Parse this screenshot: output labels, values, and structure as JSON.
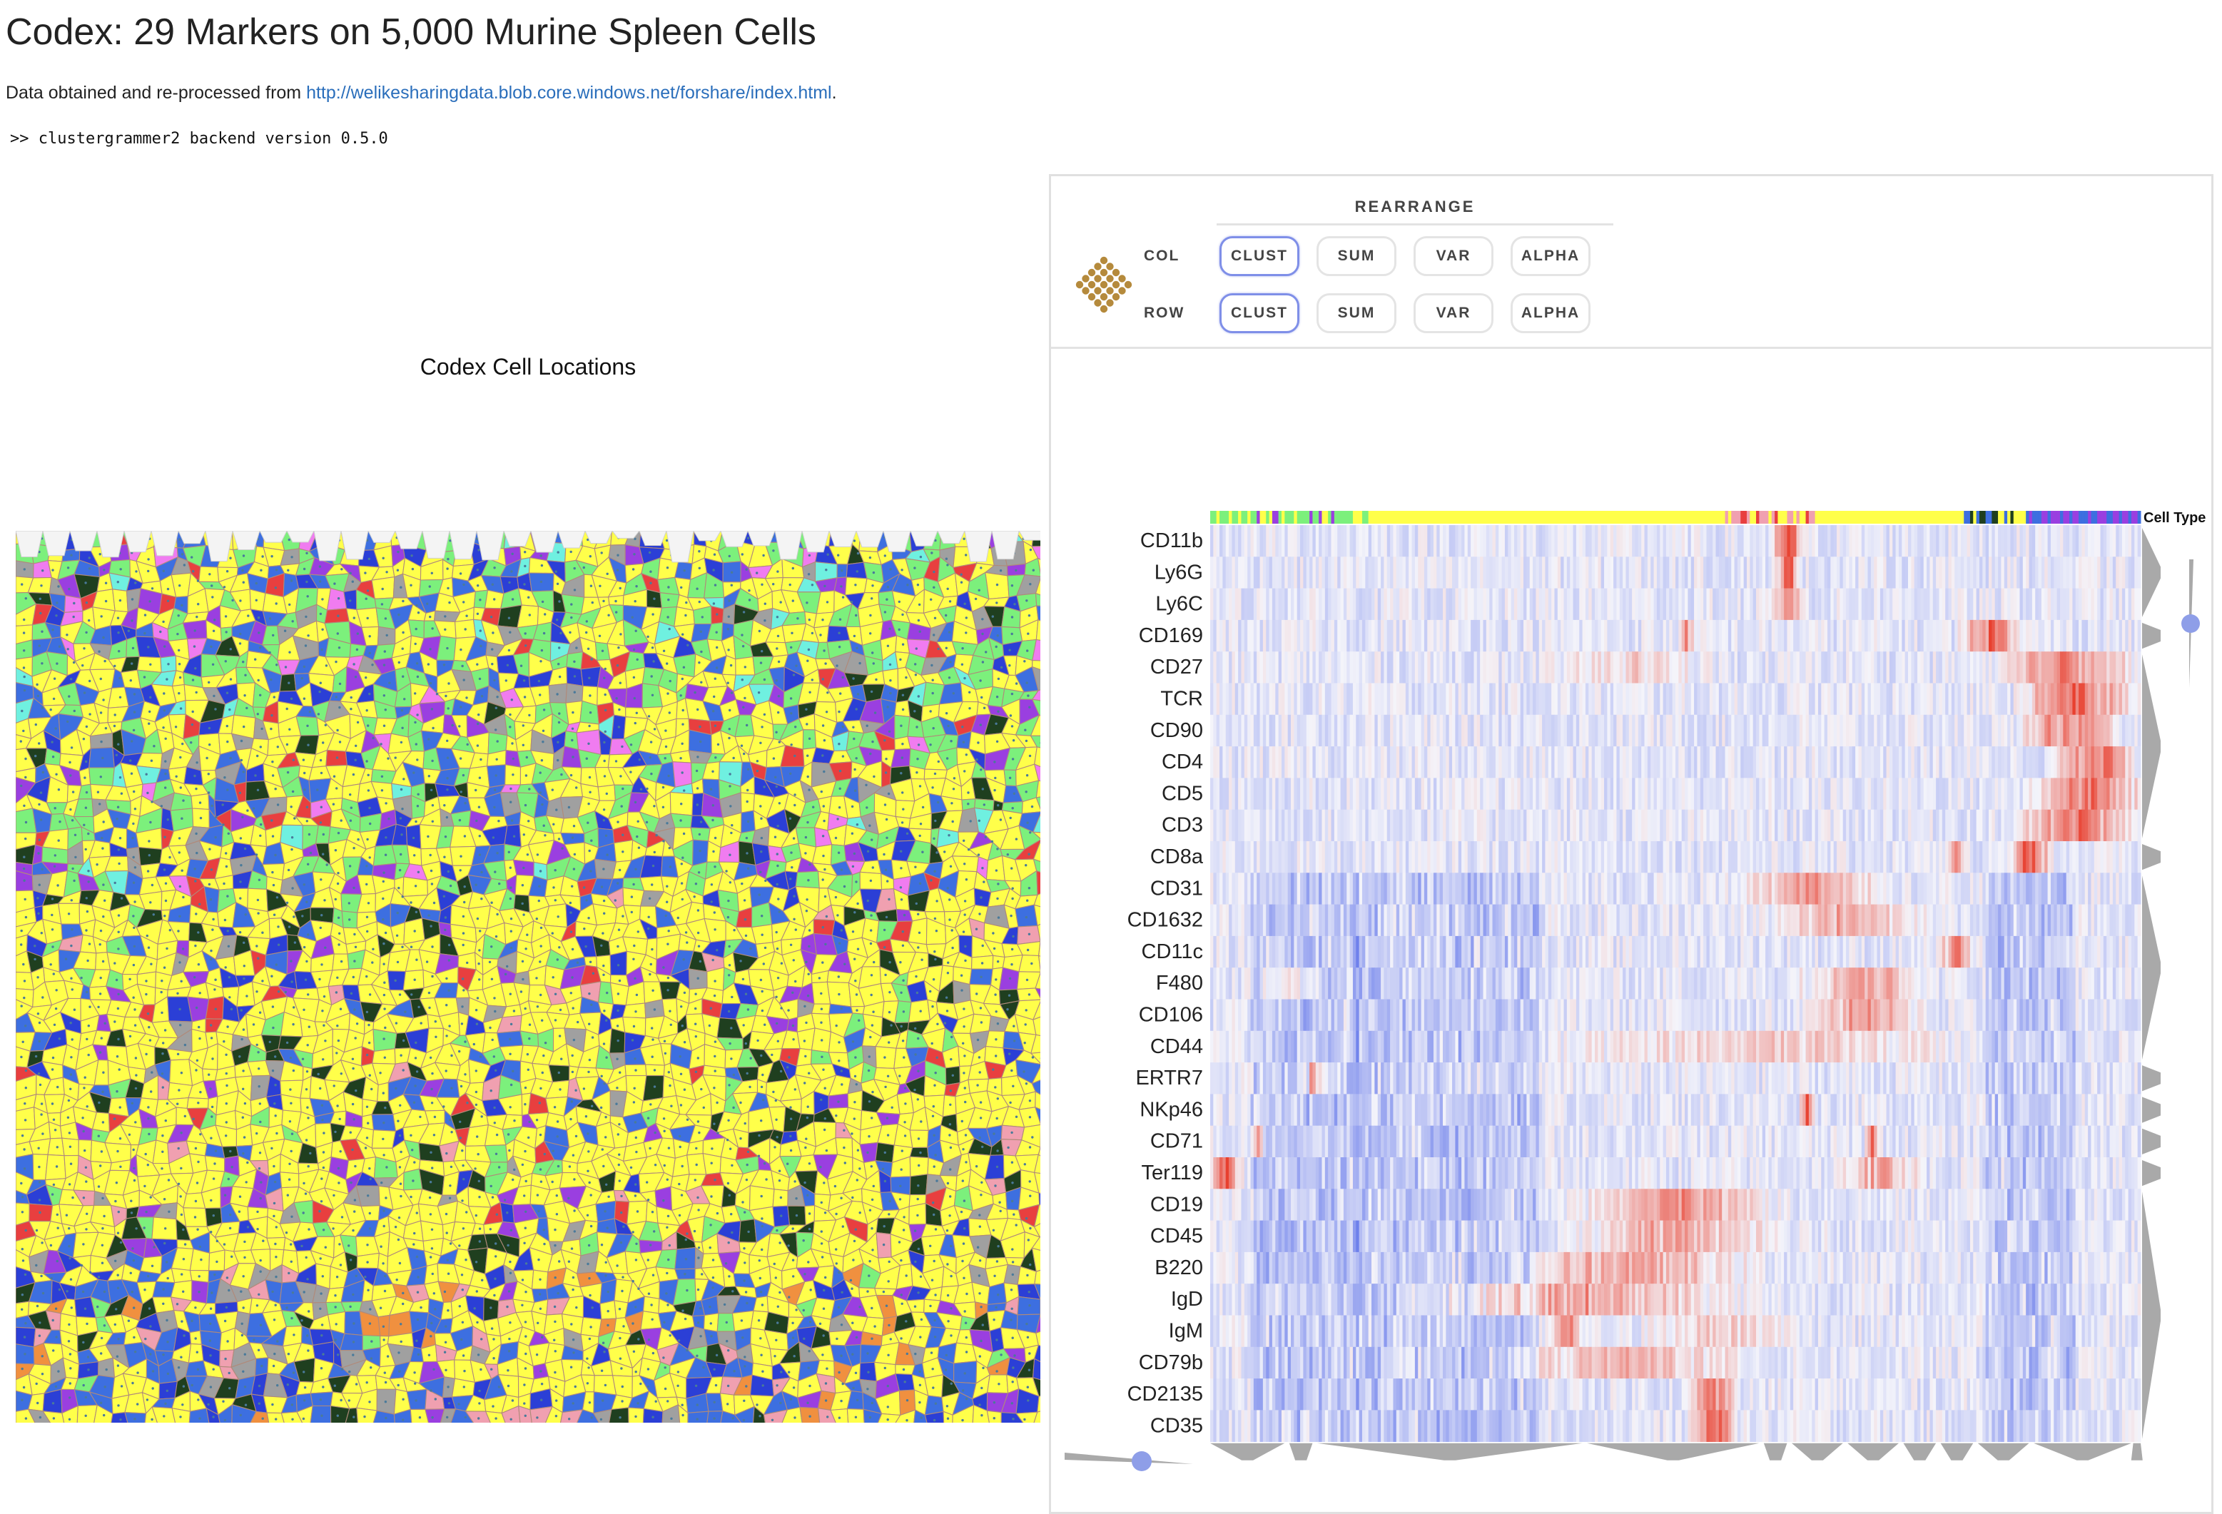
{
  "header": {
    "title": "Codex: 29 Markers on 5,000 Murine Spleen Cells",
    "source_prefix": "Data obtained and re-processed from ",
    "source_link": "http://welikesharingdata.blob.core.windows.net/forshare/index.html",
    "source_suffix": ".",
    "version": ">> clustergrammer2 backend version 0.5.0"
  },
  "map": {
    "title": "Codex Cell Locations",
    "palette": [
      "#ffff4a",
      "#ffff4a",
      "#ffff4a",
      "#ffff4a",
      "#ffff4a",
      "#7cf07c",
      "#3d6fe0",
      "#2b3fd6",
      "#a0a0a0",
      "#1f3f1f",
      "#9a3fe0",
      "#e83f3f",
      "#f07cf0",
      "#6ff0e0",
      "#f0a0b0",
      "#f0903f"
    ]
  },
  "toolbar": {
    "logo_icon": "clustergrammer-dots-icon",
    "section_title": "REARRANGE",
    "col_label": "COL",
    "row_label": "ROW",
    "col_buttons": [
      "CLUST",
      "SUM",
      "VAR",
      "ALPHA"
    ],
    "row_buttons": [
      "CLUST",
      "SUM",
      "VAR",
      "ALPHA"
    ],
    "col_active": "CLUST",
    "row_active": "CLUST"
  },
  "heatmap": {
    "category_label": "Cell Type",
    "rows": [
      "CD11b",
      "Ly6G",
      "Ly6C",
      "CD169",
      "CD27",
      "TCR",
      "CD90",
      "CD4",
      "CD5",
      "CD3",
      "CD8a",
      "CD31",
      "CD1632",
      "CD11c",
      "F480",
      "CD106",
      "CD44",
      "ERTR7",
      "NKp46",
      "CD71",
      "Ter119",
      "CD19",
      "CD45",
      "B220",
      "IgD",
      "IgM",
      "CD79b",
      "CD2135",
      "CD35"
    ],
    "colors": {
      "high": "#e8402f",
      "low": "#3c55e6",
      "slider": "#8e9ee8",
      "dendro": "#a9a9a9"
    }
  }
}
